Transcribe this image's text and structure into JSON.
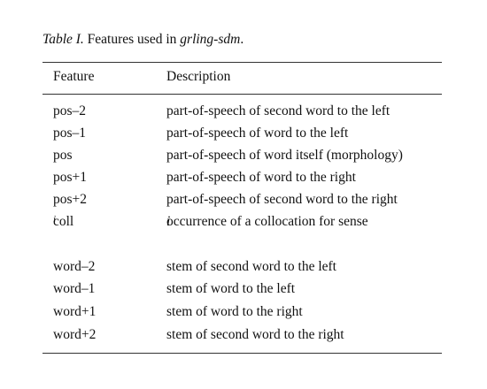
{
  "caption": {
    "label": "Table I.",
    "text": "Features used in",
    "code": "grling-sdm",
    "period": "."
  },
  "headers": {
    "feature": "Feature",
    "description": "Description"
  },
  "group1": [
    {
      "feature": "pos–2",
      "description": "part-of-speech of second word to the left"
    },
    {
      "feature": "pos–1",
      "description": "part-of-speech of word to the left"
    },
    {
      "feature": "pos",
      "description": "part-of-speech of word itself (morphology)"
    },
    {
      "feature": "pos+1",
      "description": "part-of-speech of word to the right"
    },
    {
      "feature": "pos+2",
      "description": "part-of-speech of second word to the right"
    }
  ],
  "coll_row": {
    "feature_base": "coll",
    "feature_sub": "i",
    "description": "occurrence of a collocation for sense",
    "description_var": "i"
  },
  "group2": [
    {
      "feature": "word–2",
      "description": "stem of second word to the left"
    },
    {
      "feature": "word–1",
      "description": "stem of word to the left"
    },
    {
      "feature": "word+1",
      "description": "stem of word to the right"
    },
    {
      "feature": "word+2",
      "description": "stem of second word to the right"
    }
  ]
}
